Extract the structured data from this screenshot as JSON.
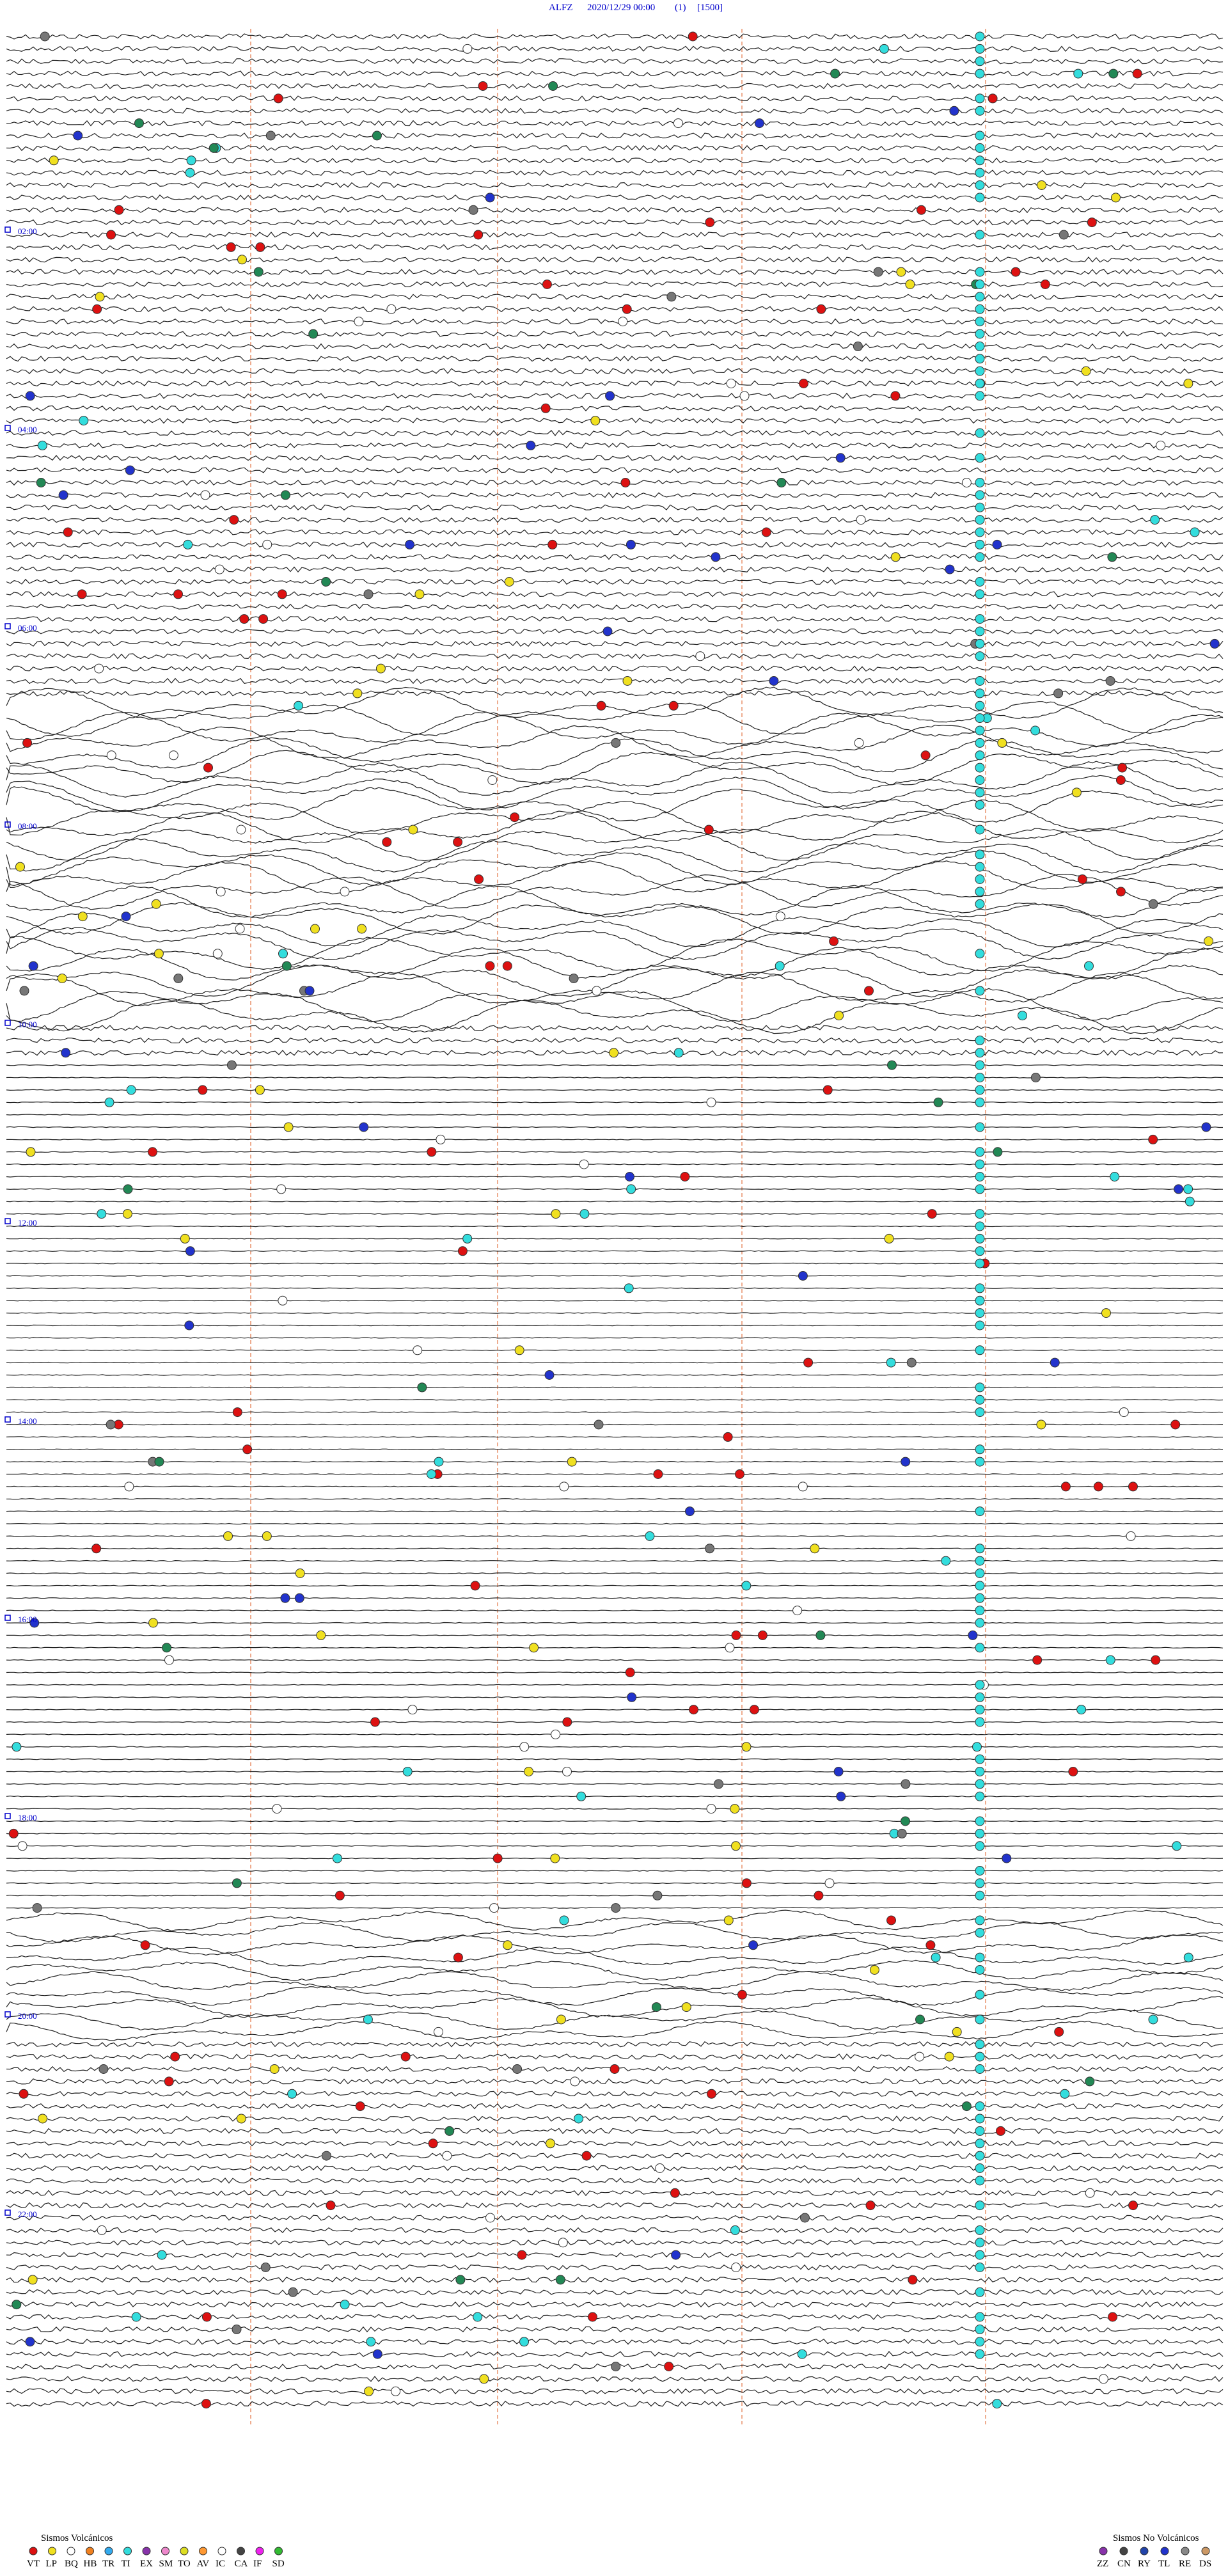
{
  "header": {
    "station": "ALFZ",
    "datetime": "2020/12/29 00:00",
    "channel": "(1)",
    "scale": "[1500]"
  },
  "time_labels": [
    "02:00",
    "04:00",
    "06:00",
    "08:00",
    "10:00",
    "12:00",
    "14:00",
    "16:00",
    "18:00",
    "20:00",
    "22:00"
  ],
  "legend_volcanic": {
    "title": "Sismos Volcánicos",
    "codes": [
      "VT",
      "LP",
      "BQ",
      "HB",
      "TR",
      "TI",
      "EX",
      "SM",
      "TO",
      "AV",
      "IC",
      "CA",
      "IF",
      "SD"
    ]
  },
  "legend_non_volcanic": {
    "title": "Sismos No Volcánicos",
    "codes": [
      "ZZ",
      "CN",
      "RY",
      "TL",
      "RE",
      "DS"
    ]
  }
}
